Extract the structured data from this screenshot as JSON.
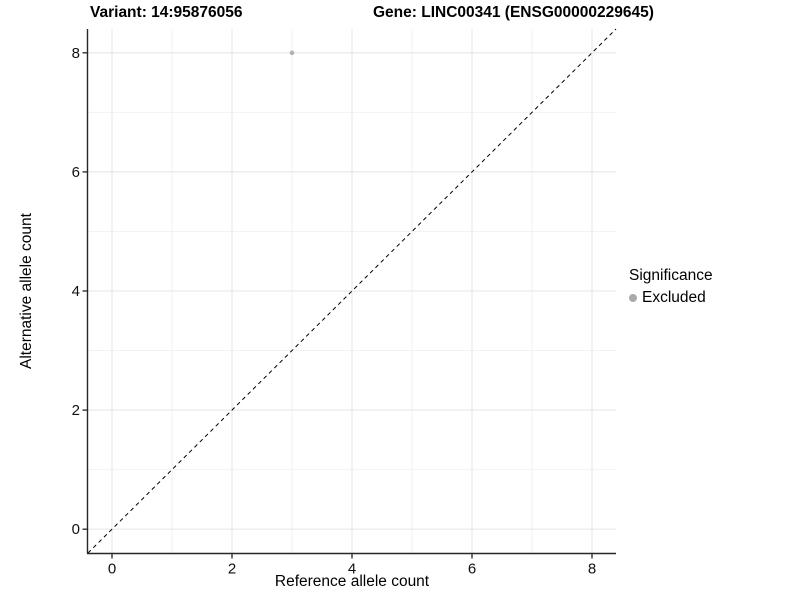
{
  "titles": {
    "variant": "Variant: 14:95876056",
    "gene": "Gene: LINC00341 (ENSG00000229645)"
  },
  "chart_data": {
    "type": "scatter",
    "title_left": "Variant: 14:95876056",
    "title_right": "Gene: LINC00341 (ENSG00000229645)",
    "xlabel": "Reference allele count",
    "ylabel": "Alternative allele count",
    "xlim": [
      -0.4,
      8.4
    ],
    "ylim": [
      -0.4,
      8.4
    ],
    "x_major_ticks": [
      0,
      2,
      4,
      6,
      8
    ],
    "y_major_ticks": [
      0,
      2,
      4,
      6,
      8
    ],
    "x_minor_ticks": [
      1,
      3,
      5,
      7
    ],
    "y_minor_ticks": [
      1,
      3,
      5,
      7
    ],
    "grid": true,
    "series": [
      {
        "name": "Excluded",
        "points": [
          {
            "x": 3,
            "y": 8
          }
        ]
      }
    ],
    "reference_line": {
      "style": "dashed",
      "from": [
        -0.4,
        -0.4
      ],
      "to": [
        8.4,
        8.4
      ],
      "meaning": "identity y = x"
    },
    "legend": {
      "title": "Significance",
      "position": "right",
      "entries": [
        {
          "label": "Excluded",
          "color": "#aaaaaa"
        }
      ]
    },
    "colors": {
      "point": "#b3b3b3",
      "legend_dot": "#a9a9a9",
      "grid_major": "#e5e5e5",
      "grid_minor": "#f2f2f2",
      "axis_line": "#262626",
      "tick_mark": "#262626",
      "tick_label": "#111111",
      "reference_line": "#000000",
      "background": "#ffffff"
    }
  },
  "legend": {
    "title": "Significance",
    "entries": [
      {
        "label": "Excluded"
      }
    ]
  }
}
